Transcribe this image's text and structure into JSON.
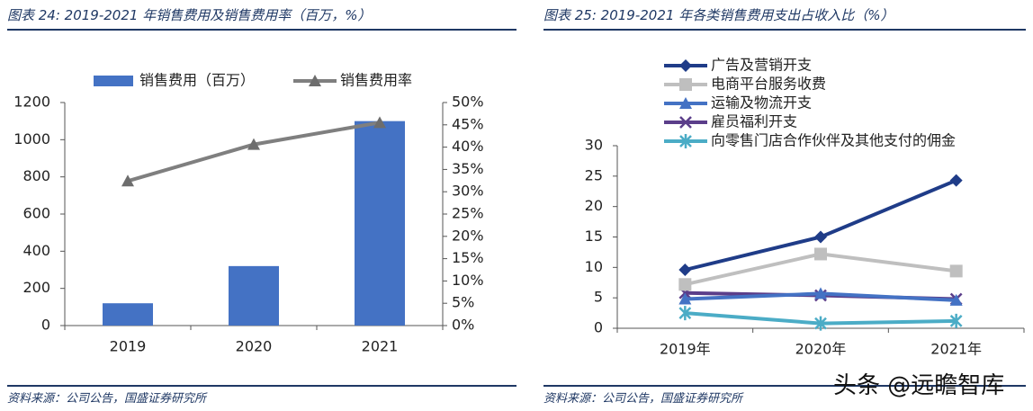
{
  "left": {
    "title": "图表 24:  2019-2021 年销售费用及销售费用率（百万，%）",
    "source": "资料来源：公司公告，国盛证券研究所"
  },
  "right": {
    "title": "图表 25:  2019-2021 年各类销售费用支出占收入比（%）",
    "source": "资料来源：公司公告，国盛证券研究所"
  },
  "watermark": "头条 @远瞻智库",
  "chart_data": [
    {
      "type": "bar+line",
      "categories": [
        "2019",
        "2020",
        "2021"
      ],
      "series": [
        {
          "name": "销售费用（百万）",
          "kind": "bar",
          "axis": "left",
          "color": "#4472c4",
          "values": [
            120,
            320,
            1100
          ]
        },
        {
          "name": "销售费用率",
          "kind": "line",
          "axis": "right",
          "color": "#7f7f7f",
          "marker": "triangle",
          "values": [
            32.4,
            40.6,
            45.5
          ]
        }
      ],
      "y_left": {
        "ticks": [
          "0",
          "200",
          "400",
          "600",
          "800",
          "1000",
          "1200"
        ],
        "range": [
          0,
          1200
        ]
      },
      "y_right": {
        "ticks": [
          "0%",
          "5%",
          "10%",
          "15%",
          "20%",
          "25%",
          "30%",
          "35%",
          "40%",
          "45%",
          "50%"
        ],
        "range": [
          0,
          50
        ]
      },
      "legend": "top"
    },
    {
      "type": "line",
      "categories": [
        "2019年",
        "2020年",
        "2021年"
      ],
      "series": [
        {
          "name": "广告及营销开支",
          "color": "#1f3c88",
          "marker": "diamond",
          "values": [
            9.6,
            15.0,
            24.3
          ]
        },
        {
          "name": "电商平台服务收费",
          "color": "#bfbfbf",
          "marker": "square",
          "values": [
            7.2,
            12.2,
            9.4
          ]
        },
        {
          "name": "运输及物流开支",
          "color": "#4472c4",
          "marker": "triangle",
          "values": [
            4.8,
            5.7,
            4.6
          ]
        },
        {
          "name": "雇员福利开支",
          "color": "#5b3e8a",
          "marker": "x",
          "values": [
            5.8,
            5.4,
            4.8
          ]
        },
        {
          "name": "向零售门店合作伙伴及其他支付的佣金",
          "color": "#4bacc6",
          "marker": "asterisk",
          "values": [
            2.5,
            0.8,
            1.2
          ]
        }
      ],
      "y": {
        "ticks": [
          "0",
          "5",
          "10",
          "15",
          "20",
          "25",
          "30"
        ],
        "range": [
          0,
          30
        ]
      },
      "legend": "top"
    }
  ]
}
